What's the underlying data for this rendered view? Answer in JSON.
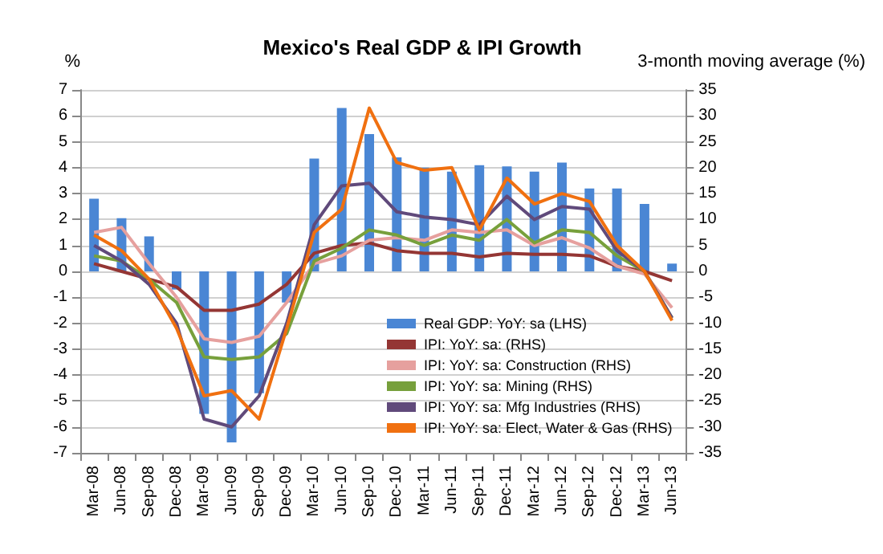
{
  "chart_data": {
    "type": "bar",
    "title": "Mexico's Real GDP & IPI Growth",
    "ylabel": "%",
    "y2label": "3-month moving average (%)",
    "categories": [
      "Mar-08",
      "Jun-08",
      "Sep-08",
      "Dec-08",
      "Mar-09",
      "Jun-09",
      "Sep-09",
      "Dec-09",
      "Mar-10",
      "Jun-10",
      "Sep-10",
      "Dec-10",
      "Mar-11",
      "Jun-11",
      "Sep-11",
      "Dec-11",
      "Mar-12",
      "Jun-12",
      "Sep-12",
      "Dec-12",
      "Mar-13",
      "Jun-13"
    ],
    "series": [
      {
        "name": "Real GDP: YoY: sa (LHS)",
        "color": "#4a86d4",
        "values": [
          2.8,
          2.05,
          1.35,
          -0.7,
          -5.5,
          -6.6,
          -4.7,
          -1.2,
          4.35,
          6.3,
          5.3,
          4.4,
          4.0,
          3.85,
          4.1,
          4.05,
          3.85,
          4.2,
          3.2,
          3.2,
          2.6,
          0.3
        ]
      },
      {
        "name": "IPI: YoY: sa: (RHS)",
        "type": "line",
        "axis": "y2",
        "color": "#943634",
        "values": [
          1.5,
          0,
          -1.5,
          -3,
          -7.5,
          -7.5,
          -6.3,
          -2.5,
          3.5,
          5,
          5.5,
          4,
          3.5,
          3.5,
          2.8,
          3.5,
          3.3,
          3.3,
          3,
          1,
          0,
          -1.8
        ]
      },
      {
        "name": "IPI: YoY: sa: Construction (RHS)",
        "type": "line",
        "axis": "y2",
        "color": "#e6a09e",
        "values": [
          7.5,
          8.5,
          1.5,
          -5,
          -13,
          -13.7,
          -12.5,
          -6,
          1.5,
          3,
          6,
          6.5,
          6,
          8,
          7.5,
          8,
          5,
          6.5,
          4.5,
          1,
          -0.5,
          -7
        ]
      },
      {
        "name": "IPI: YoY: sa: Mining (RHS)",
        "type": "line",
        "axis": "y2",
        "color": "#77a03c",
        "values": [
          3,
          2,
          -1.5,
          -6,
          -16.5,
          -17,
          -16.5,
          -12,
          2,
          4.5,
          8,
          7,
          5,
          7,
          6,
          10,
          5.5,
          8,
          7.5,
          3,
          0,
          -9
        ]
      },
      {
        "name": "IPI: YoY: sa: Mfg Industries (RHS)",
        "type": "line",
        "axis": "y2",
        "color": "#604a7b",
        "values": [
          5,
          2,
          -2.5,
          -10,
          -28.5,
          -30,
          -24,
          -10,
          9,
          16.5,
          17,
          11.5,
          10.5,
          10,
          9,
          14.5,
          10,
          12.5,
          12,
          4,
          0,
          -9
        ]
      },
      {
        "name": "IPI: YoY: sa: Elect, Water & Gas (RHS)",
        "type": "line",
        "axis": "y2",
        "color": "#f07010",
        "values": [
          7,
          4,
          -1.5,
          -11,
          -24,
          -23,
          -28.5,
          -11,
          7.5,
          12,
          31.5,
          21,
          19.5,
          20,
          8,
          18,
          13,
          15,
          13.5,
          5,
          0,
          -9.5
        ]
      }
    ],
    "ylim": [
      -7,
      7
    ],
    "yticks": [
      -7,
      -6,
      -5,
      -4,
      -3,
      -2,
      -1,
      0,
      1,
      2,
      3,
      4,
      5,
      6,
      7
    ],
    "y2lim": [
      -35,
      35
    ],
    "y2ticks": [
      -35,
      -30,
      -25,
      -20,
      -15,
      -10,
      -5,
      0,
      5,
      10,
      15,
      20,
      25,
      30,
      35
    ],
    "grid": "y",
    "legend": "bottom right",
    "marker": "none",
    "line_style": "solid"
  }
}
